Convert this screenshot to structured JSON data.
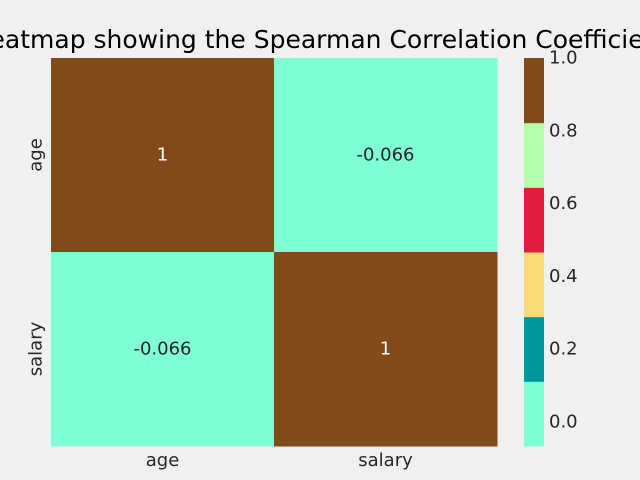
{
  "chart_data": {
    "type": "heatmap",
    "title": "Heatmap showing the Spearman Correlation Coefficient",
    "x_labels": [
      "age",
      "salary"
    ],
    "y_labels": [
      "age",
      "salary"
    ],
    "values": [
      [
        1,
        -0.066
      ],
      [
        -0.066,
        1
      ]
    ],
    "annotations": [
      [
        "1",
        "-0.066"
      ],
      [
        "-0.066",
        "1"
      ]
    ],
    "colorbar": {
      "range": [
        -0.066,
        1.0
      ],
      "ticks": [
        0.0,
        0.2,
        0.4,
        0.6,
        0.8,
        1.0
      ],
      "tick_labels": [
        "0.0",
        "0.2",
        "0.4",
        "0.6",
        "0.8",
        "1.0"
      ],
      "colors": [
        "#7fffd4",
        "#00979c",
        "#fadb75",
        "#e01a40",
        "#b3ffae",
        "#804a1a"
      ]
    },
    "grid": false,
    "background_color": "#f0f0f0"
  }
}
